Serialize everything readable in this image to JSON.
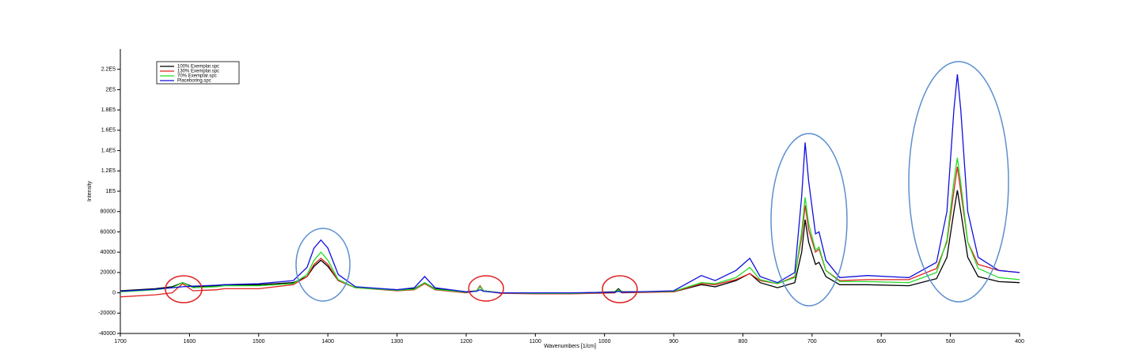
{
  "chart_data": {
    "type": "line",
    "x_label": "Wavenumbers [1/cm]",
    "y_label": "Intensity",
    "xlim": [
      1700,
      400
    ],
    "ylim": [
      -40000,
      240000
    ],
    "xticks": [
      1700,
      1600,
      1500,
      1400,
      1300,
      1200,
      1100,
      1000,
      900,
      800,
      700,
      600,
      500,
      400
    ],
    "yticks": [
      -40000,
      -20000,
      0,
      20000,
      40000,
      60000,
      80000,
      {
        "value": 100000,
        "label": "1E5"
      },
      {
        "value": 120000,
        "label": "1.2E5"
      },
      {
        "value": 140000,
        "label": "1.4E5"
      },
      {
        "value": 160000,
        "label": "1.6E5"
      },
      {
        "value": 180000,
        "label": "1.8E5"
      },
      {
        "value": 200000,
        "label": "2E5"
      },
      {
        "value": 220000,
        "label": "2.2E5"
      }
    ],
    "legend": "top-left",
    "x": [
      1700,
      1650,
      1625,
      1610,
      1595,
      1560,
      1550,
      1500,
      1450,
      1430,
      1420,
      1410,
      1400,
      1385,
      1360,
      1300,
      1275,
      1260,
      1245,
      1200,
      1185,
      1180,
      1175,
      1150,
      1100,
      1050,
      985,
      980,
      975,
      900,
      860,
      840,
      810,
      790,
      775,
      750,
      725,
      715,
      710,
      705,
      695,
      690,
      680,
      660,
      620,
      560,
      520,
      505,
      495,
      490,
      485,
      475,
      460,
      430,
      400
    ],
    "series": [
      {
        "name": "100% Exemplar.spc",
        "color": "#000000",
        "values": [
          2000,
          4000,
          6000,
          10000,
          6000,
          7000,
          8000,
          8000,
          10000,
          16000,
          26000,
          32000,
          26000,
          12000,
          5000,
          3000,
          4000,
          10000,
          4000,
          1000,
          2000,
          6000,
          2000,
          0,
          0,
          -500,
          1000,
          4000,
          1000,
          1000,
          8000,
          6000,
          12000,
          19000,
          10000,
          5000,
          10000,
          40000,
          72000,
          50000,
          28000,
          30000,
          16000,
          8000,
          8000,
          7000,
          14000,
          35000,
          80000,
          101000,
          80000,
          35000,
          16000,
          11000,
          10000
        ]
      },
      {
        "name": "130% Exemplar.spc",
        "color": "#e02020",
        "values": [
          -4000,
          -2000,
          0,
          9000,
          2000,
          3000,
          4000,
          4000,
          8000,
          16000,
          28000,
          34000,
          28000,
          12000,
          5000,
          2000,
          3000,
          9000,
          3000,
          0,
          2000,
          7000,
          2000,
          -500,
          -1000,
          -1000,
          0,
          3000,
          0,
          1000,
          9000,
          8000,
          13000,
          19000,
          12000,
          9000,
          16000,
          55000,
          86000,
          62000,
          40000,
          43000,
          22000,
          12000,
          13000,
          13000,
          24000,
          50000,
          100000,
          124000,
          100000,
          50000,
          28000,
          22000,
          20000
        ]
      },
      {
        "name": "70% Exemplar.spc",
        "color": "#22dd22",
        "values": [
          1000,
          3000,
          5000,
          10000,
          5000,
          6000,
          7000,
          7000,
          9000,
          18000,
          32000,
          40000,
          32000,
          13000,
          5000,
          2500,
          3500,
          10000,
          3500,
          500,
          2000,
          6000,
          2000,
          0,
          -500,
          -500,
          500,
          3000,
          500,
          1500,
          10000,
          9000,
          15000,
          25000,
          13000,
          9000,
          15000,
          60000,
          94000,
          68000,
          42000,
          45000,
          22000,
          11000,
          11000,
          10000,
          20000,
          52000,
          110000,
          133000,
          108000,
          50000,
          24000,
          15000,
          13000
        ]
      },
      {
        "name": "Placeboring.spc",
        "color": "#1010dd",
        "values": [
          1500,
          3500,
          5000,
          6000,
          6500,
          7500,
          8000,
          9000,
          12000,
          25000,
          44000,
          52000,
          44000,
          18000,
          6000,
          3000,
          5000,
          16000,
          5000,
          1000,
          1500,
          3000,
          1500,
          0,
          0,
          0,
          500,
          1500,
          500,
          2000,
          17000,
          12000,
          22000,
          34000,
          16000,
          10000,
          20000,
          95000,
          148000,
          110000,
          58000,
          60000,
          32000,
          15000,
          17000,
          15000,
          30000,
          80000,
          180000,
          215000,
          180000,
          80000,
          35000,
          22000,
          20000
        ]
      }
    ]
  }
}
